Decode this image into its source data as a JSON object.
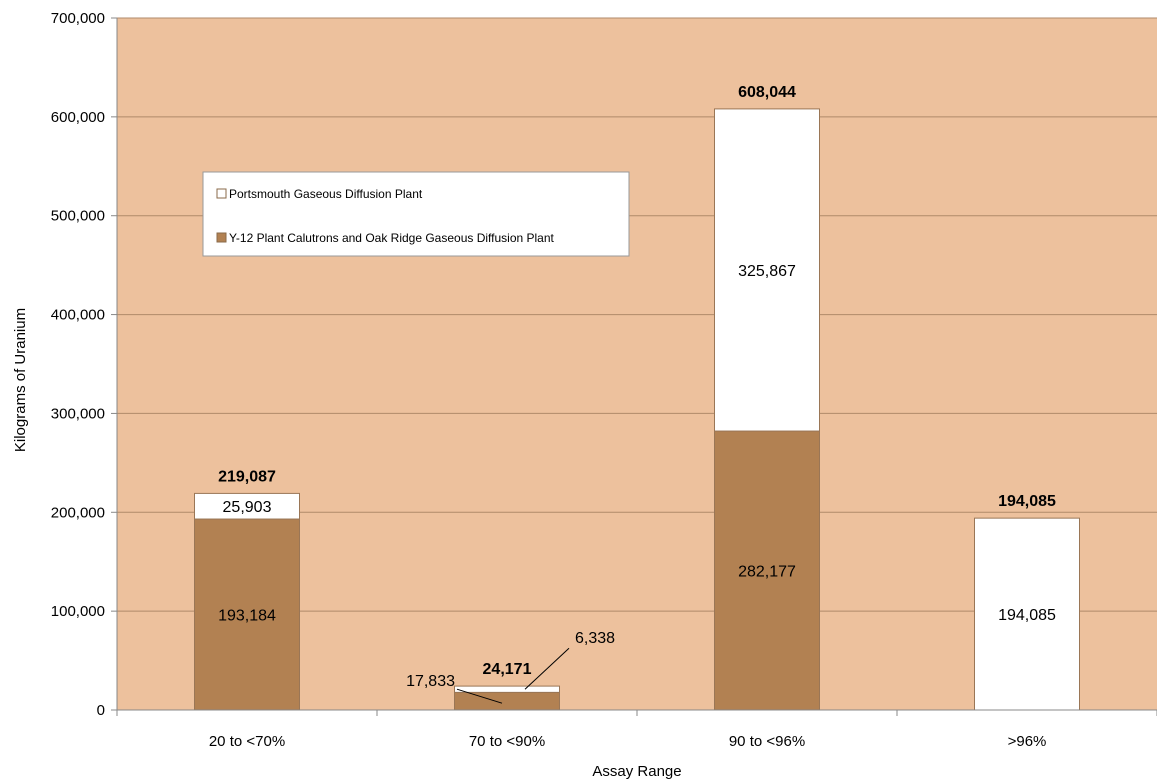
{
  "chart_data": {
    "type": "bar",
    "stacked": true,
    "categories": [
      "20 to <70%",
      "70 to <90%",
      "90 to <96%",
      ">96%"
    ],
    "series": [
      {
        "name": "Y-12 Plant Calutrons and Oak Ridge Gaseous Diffusion Plant",
        "values": [
          193184,
          17833,
          282177,
          0
        ],
        "labels": [
          "193,184",
          "17,833",
          "282,177",
          ""
        ],
        "color": "#b28152"
      },
      {
        "name": "Portsmouth Gaseous Diffusion Plant",
        "values": [
          25903,
          6338,
          325867,
          194085
        ],
        "labels": [
          "25,903",
          "6,338",
          "325,867",
          "194,085"
        ],
        "color": "#ffffff"
      }
    ],
    "totals": [
      219087,
      24171,
      608044,
      194085
    ],
    "total_labels": [
      "219,087",
      "24,171",
      "608,044",
      "194,085"
    ],
    "title": "",
    "xlabel": "Assay Range",
    "ylabel": "Kilograms of Uranium",
    "ylim": [
      0,
      700000
    ],
    "yticks": [
      0,
      100000,
      200000,
      300000,
      400000,
      500000,
      600000,
      700000
    ],
    "ytick_labels": [
      "0",
      "100,000",
      "200,000",
      "300,000",
      "400,000",
      "500,000",
      "600,000",
      "700,000"
    ],
    "grid": true,
    "legend_position": "upper-left",
    "plot_background": "#edc19d",
    "grid_color": "#b08a6a"
  }
}
